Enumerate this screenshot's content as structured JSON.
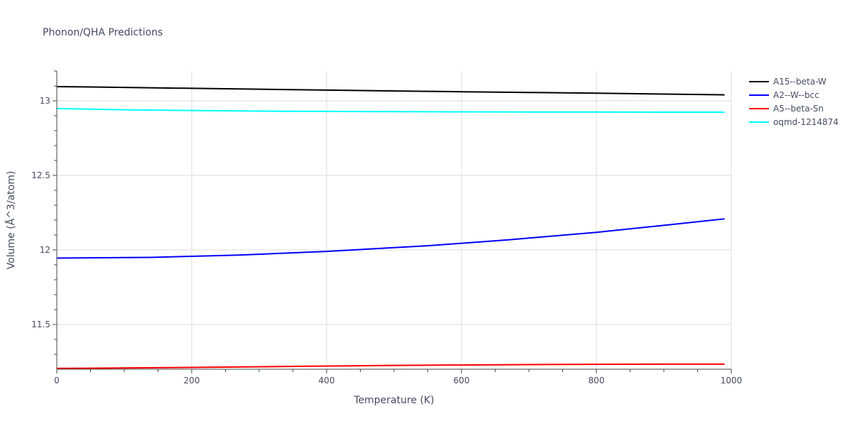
{
  "chart_data": {
    "type": "line",
    "title": "Phonon/QHA Predictions",
    "xlabel": "Temperature (K)",
    "ylabel": "Volume (Å^3/atom)",
    "xlim": [
      0,
      1000
    ],
    "ylim": [
      11.2,
      13.2
    ],
    "x_ticks": [
      0,
      200,
      400,
      600,
      800,
      1000
    ],
    "x_tick_labels": [
      "0",
      "200",
      "400",
      "600",
      "800",
      "1000"
    ],
    "y_ticks": [
      11.5,
      12,
      12.5,
      13
    ],
    "y_tick_labels": [
      "11.5",
      "12",
      "12.5",
      "13"
    ],
    "grid": true,
    "legend_position": "right",
    "series": [
      {
        "name": "A15--beta-W",
        "color": "#000000",
        "x": [
          0,
          100,
          200,
          300,
          400,
          500,
          600,
          700,
          800,
          900,
          990
        ],
        "y": [
          13.095,
          13.09,
          13.084,
          13.078,
          13.072,
          13.066,
          13.061,
          13.056,
          13.051,
          13.045,
          13.04
        ]
      },
      {
        "name": "A2--W--bcc",
        "color": "#0000ff",
        "x": [
          0,
          140,
          200,
          270,
          400,
          550,
          670,
          800,
          900,
          990
        ],
        "y": [
          11.945,
          11.95,
          11.957,
          11.965,
          11.99,
          12.028,
          12.068,
          12.118,
          12.165,
          12.208
        ]
      },
      {
        "name": "A5--beta-Sn",
        "color": "#ff0000",
        "x": [
          0,
          150,
          280,
          380,
          490,
          600,
          700,
          800,
          900,
          990
        ],
        "y": [
          11.205,
          11.21,
          11.215,
          11.22,
          11.225,
          11.228,
          11.231,
          11.233,
          11.234,
          11.234
        ]
      },
      {
        "name": "oqmd-1214874",
        "color": "#00ffff",
        "x": [
          0,
          100,
          200,
          300,
          400,
          500,
          600,
          700,
          800,
          900,
          990
        ],
        "y": [
          12.948,
          12.94,
          12.935,
          12.931,
          12.929,
          12.927,
          12.926,
          12.925,
          12.925,
          12.924,
          12.924
        ]
      }
    ]
  }
}
